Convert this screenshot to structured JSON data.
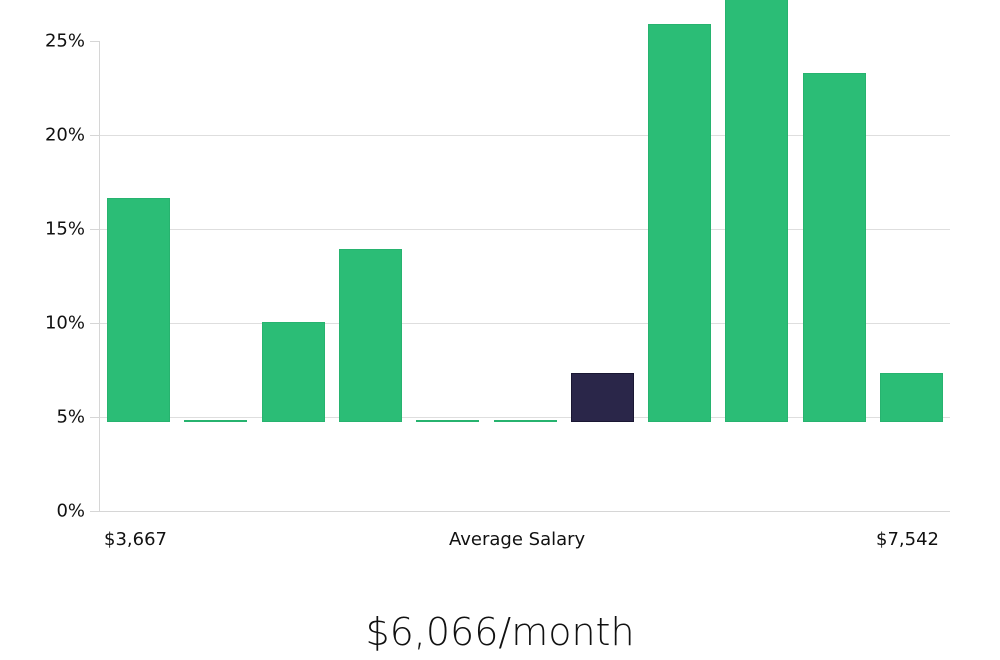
{
  "chart_data": {
    "type": "bar",
    "title": "",
    "xlabel": "Average Salary",
    "ylabel": "",
    "ylim": [
      0,
      25
    ],
    "yticks": [
      "0%",
      "5%",
      "10%",
      "15%",
      "20%",
      "25%"
    ],
    "grid": true,
    "x_range_labels": {
      "min": "$3,667",
      "max": "$7,542"
    },
    "categories": [
      "bin1",
      "bin2",
      "bin3",
      "bin4",
      "bin5",
      "bin6",
      "bin7",
      "bin8",
      "bin9",
      "bin10",
      "bin11"
    ],
    "values": [
      11.9,
      0,
      5.3,
      9.2,
      0,
      0,
      2.6,
      21.1,
      23.8,
      18.5,
      2.6
    ],
    "highlighted_index": 6,
    "colors": {
      "bar": "#2bbd76",
      "highlight": "#2a2649",
      "grid": "#dedede"
    },
    "annotation": "$6,066/month"
  },
  "axis": {
    "y_labels": [
      "25%",
      "20%",
      "15%",
      "10%",
      "5%",
      "0%"
    ],
    "x_min_label": "$3,667",
    "x_center_label": "Average Salary",
    "x_max_label": "$7,542"
  },
  "summary": {
    "value": "$6,066/month"
  }
}
